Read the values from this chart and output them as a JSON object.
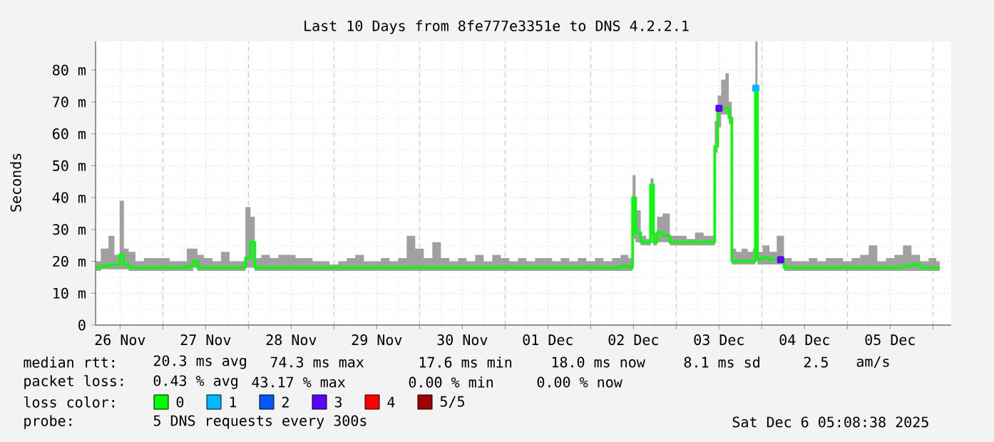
{
  "chart_data": {
    "type": "step",
    "title": "Last 10 Days from 8fe777e3351e to DNS 4.2.2.1",
    "ylabel": "Seconds",
    "legend_title": "loss color:",
    "legend": "bottom",
    "grid": true,
    "xlim": [
      "2025-11-26T05:08",
      "2025-12-06T05:08"
    ],
    "ylim": [
      0,
      89
    ],
    "xticks": [
      {
        "value": "2025-11-26T12:00",
        "label": "26 Nov"
      },
      {
        "value": "2025-11-27T12:00",
        "label": "27 Nov"
      },
      {
        "value": "2025-11-28T12:00",
        "label": "28 Nov"
      },
      {
        "value": "2025-11-29T12:00",
        "label": "29 Nov"
      },
      {
        "value": "2025-11-30T12:00",
        "label": "30 Nov"
      },
      {
        "value": "2025-12-01T12:00",
        "label": "01 Dec"
      },
      {
        "value": "2025-12-02T12:00",
        "label": "02 Dec"
      },
      {
        "value": "2025-12-03T12:00",
        "label": "03 Dec"
      },
      {
        "value": "2025-12-04T12:00",
        "label": "04 Dec"
      },
      {
        "value": "2025-12-05T12:00",
        "label": "05 Dec"
      },
      {
        "value": "2025-11-27",
        "label": null
      },
      {
        "value": "2025-11-28",
        "label": null
      },
      {
        "value": "2025-11-29",
        "label": null
      },
      {
        "value": "2025-11-30",
        "label": null
      },
      {
        "value": "2025-12-01",
        "label": null
      },
      {
        "value": "2025-12-02",
        "label": null
      },
      {
        "value": "2025-12-03",
        "label": null
      },
      {
        "value": "2025-12-04",
        "label": null
      },
      {
        "value": "2025-12-05",
        "label": null
      },
      {
        "value": "2025-12-06",
        "label": null
      }
    ],
    "yticks": [
      0,
      {
        "value": 10,
        "label": "10 m"
      },
      {
        "value": 20,
        "label": "20 m"
      },
      {
        "value": 30,
        "label": "30 m"
      },
      {
        "value": 40,
        "label": "40 m"
      },
      {
        "value": 50,
        "label": "50 m"
      },
      {
        "value": 60,
        "label": "60 m"
      },
      {
        "value": 70,
        "label": "70 m"
      },
      {
        "value": 80,
        "label": "80 m"
      }
    ],
    "x": [
      "2025-11-26T05:17",
      "2025-11-26T07:55",
      "2025-11-26T09:36",
      "2025-11-26T11:17",
      "2025-11-26T12:29",
      "2025-11-26T13:41",
      "2025-11-26T15:07",
      "2025-11-26T17:31",
      "2025-11-26T19:55",
      "2025-11-26T22:19",
      "2025-11-27T00:43",
      "2025-11-27T03:07",
      "2025-11-27T05:31",
      "2025-11-27T07:55",
      "2025-11-27T09:07",
      "2025-11-27T10:19",
      "2025-11-27T12:43",
      "2025-11-27T15:07",
      "2025-11-27T17:31",
      "2025-11-27T19:55",
      "2025-11-27T22:19",
      "2025-11-28T00:00",
      "2025-11-28T01:12",
      "2025-11-28T02:24",
      "2025-11-28T04:48",
      "2025-11-28T07:12",
      "2025-11-28T09:36",
      "2025-11-28T12:00",
      "2025-11-28T14:24",
      "2025-11-28T16:48",
      "2025-11-28T19:12",
      "2025-11-28T21:36",
      "2025-11-29T00:00",
      "2025-11-29T02:24",
      "2025-11-29T04:48",
      "2025-11-29T07:12",
      "2025-11-29T09:36",
      "2025-11-29T12:00",
      "2025-11-29T14:24",
      "2025-11-29T16:48",
      "2025-11-29T19:12",
      "2025-11-29T21:36",
      "2025-11-30T00:00",
      "2025-11-30T02:24",
      "2025-11-30T04:48",
      "2025-11-30T07:12",
      "2025-11-30T09:36",
      "2025-11-30T12:00",
      "2025-11-30T14:24",
      "2025-11-30T16:48",
      "2025-11-30T19:12",
      "2025-11-30T21:36",
      "2025-12-01T00:00",
      "2025-12-01T02:24",
      "2025-12-01T04:48",
      "2025-12-01T07:12",
      "2025-12-01T09:36",
      "2025-12-01T12:00",
      "2025-12-01T14:24",
      "2025-12-01T16:48",
      "2025-12-01T19:12",
      "2025-12-01T21:36",
      "2025-12-02T00:00",
      "2025-12-02T02:24",
      "2025-12-02T04:48",
      "2025-12-02T07:12",
      "2025-12-02T09:36",
      "2025-12-02T11:31",
      "2025-12-02T12:00",
      "2025-12-02T13:12",
      "2025-12-02T14:53",
      "2025-12-02T16:19",
      "2025-12-02T17:17",
      "2025-12-02T18:00",
      "2025-12-02T19:12",
      "2025-12-02T21:07",
      "2025-12-02T23:17",
      "2025-12-03T01:41",
      "2025-12-03T04:05",
      "2025-12-03T06:29",
      "2025-12-03T08:53",
      "2025-12-03T10:19",
      "2025-12-03T11:17",
      "2025-12-03T12:00",
      "2025-12-03T13:12",
      "2025-12-03T14:24",
      "2025-12-03T15:07",
      "2025-12-03T16:05",
      "2025-12-03T17:31",
      "2025-12-03T19:12",
      "2025-12-03T20:53",
      "2025-12-03T22:05",
      "2025-12-03T22:19",
      "2025-12-03T23:17",
      "2025-12-04T01:12",
      "2025-12-04T03:07",
      "2025-12-04T05:17",
      "2025-12-04T07:12",
      "2025-12-04T09:36",
      "2025-12-04T12:00",
      "2025-12-04T14:24",
      "2025-12-04T16:48",
      "2025-12-04T19:12",
      "2025-12-04T21:36",
      "2025-12-05T00:00",
      "2025-12-05T02:24",
      "2025-12-05T04:48",
      "2025-12-05T07:12",
      "2025-12-05T09:36",
      "2025-12-05T12:00",
      "2025-12-05T14:24",
      "2025-12-05T16:48",
      "2025-12-05T19:12",
      "2025-12-05T21:36",
      "2025-12-06T00:00",
      "2025-12-06T01:55"
    ],
    "series": [
      {
        "name": "0",
        "color": "#00ff00",
        "values": [
          18,
          18.5,
          19,
          19,
          22,
          19,
          18,
          18,
          18,
          18,
          18,
          18,
          18,
          18.5,
          20,
          18,
          18,
          18,
          18,
          18,
          18,
          21,
          26,
          18,
          18,
          18,
          18,
          18,
          18,
          18,
          18,
          18,
          18,
          18,
          18,
          18,
          18,
          18,
          18,
          18,
          18,
          18,
          18,
          18,
          18,
          18,
          18,
          18,
          18,
          18,
          18,
          18,
          18,
          18,
          18,
          18,
          18,
          18,
          18,
          18,
          18,
          18,
          18,
          18,
          18,
          18,
          18.5,
          18,
          40,
          29,
          26,
          26,
          44,
          26,
          29,
          28,
          26,
          26,
          26,
          26,
          26,
          26,
          56,
          68,
          68,
          68,
          65,
          20,
          20,
          20,
          20,
          20,
          74.3,
          20.5,
          21,
          20.5,
          20.5,
          18,
          18,
          18,
          18,
          18,
          18,
          18,
          18,
          18,
          18,
          18,
          18,
          18,
          18,
          18.5,
          19,
          18,
          18,
          18
        ],
        "lower": [
          17,
          17.5,
          17.5,
          17.5,
          17.5,
          17.5,
          17,
          17,
          17,
          17,
          17,
          17,
          17,
          17,
          18,
          17,
          17,
          17,
          17,
          17,
          17,
          18,
          18,
          17,
          17,
          17,
          17,
          17,
          17,
          17,
          17,
          17,
          17,
          17,
          17,
          17,
          17,
          17,
          17,
          17,
          17,
          17,
          17,
          17,
          17,
          17,
          17,
          17,
          17,
          17,
          17,
          17,
          17,
          17,
          17,
          17,
          17,
          17,
          17,
          17,
          17,
          17,
          17,
          17,
          17,
          17,
          17,
          17,
          27,
          26,
          25,
          25,
          28,
          25,
          26,
          26,
          25,
          25,
          25,
          25,
          25,
          25,
          54,
          62,
          66,
          66,
          63,
          19,
          19,
          19,
          19,
          19,
          40,
          19,
          19,
          19,
          19,
          17,
          17,
          17,
          17,
          17,
          17,
          17,
          17,
          17,
          17,
          17,
          17,
          17,
          17,
          17,
          17,
          17,
          17,
          17
        ],
        "upper": [
          20,
          24,
          28,
          22,
          39,
          24,
          23,
          20,
          21,
          21,
          21,
          20,
          20,
          24,
          24,
          22,
          21,
          20,
          23,
          20,
          20,
          37,
          34,
          21,
          22,
          21,
          22,
          22,
          21,
          21,
          20,
          20,
          19,
          20,
          21,
          22,
          20,
          20,
          21,
          20,
          21,
          28,
          24,
          21,
          26,
          21,
          20,
          21,
          20,
          22,
          20,
          22,
          21,
          20,
          21,
          20,
          21,
          21,
          20,
          21,
          20,
          21,
          20,
          21,
          20,
          21,
          22,
          21,
          47,
          36,
          28,
          27,
          46,
          29,
          34,
          35,
          28,
          28,
          27,
          29,
          28,
          28,
          64,
          72,
          77,
          79,
          70,
          24,
          23,
          24,
          23,
          24,
          89,
          23,
          25,
          23,
          28,
          21,
          20,
          20,
          21,
          20,
          21,
          21,
          20,
          21,
          22,
          25,
          20,
          21,
          22,
          25,
          22,
          20,
          21,
          20
        ]
      },
      {
        "name": "1",
        "color": "#00b8ff",
        "type": "scatter",
        "marker": "square",
        "x": [
          "2025-12-03T22:19"
        ],
        "values": [
          74.3
        ]
      },
      {
        "name": "2",
        "color": "#0059ff",
        "type": "scatter",
        "marker": "square",
        "values": [
          null,
          null,
          null,
          null,
          null,
          null,
          null,
          null,
          null,
          null,
          null,
          null,
          null,
          null,
          null,
          null,
          null,
          null,
          null,
          null,
          null,
          null,
          null,
          null,
          null,
          null,
          null,
          null,
          null,
          null,
          null,
          null,
          null,
          null,
          null,
          null,
          null,
          null,
          null,
          null,
          null,
          null,
          null,
          null,
          null,
          null,
          null,
          null,
          null,
          null,
          null,
          null,
          null,
          null,
          null,
          null,
          null,
          null,
          null,
          null,
          null,
          null,
          null,
          null,
          null,
          null,
          null,
          null,
          null,
          null,
          null,
          null,
          null,
          null,
          null,
          null,
          null,
          null,
          null,
          null,
          null,
          null,
          null,
          null,
          null,
          null,
          null,
          null,
          null,
          null,
          null,
          null,
          null,
          null,
          null,
          null,
          null,
          null,
          null,
          null,
          null,
          null,
          null,
          null,
          null,
          null,
          null,
          null,
          null,
          null,
          null,
          null,
          null,
          null,
          null,
          null
        ]
      },
      {
        "name": "3",
        "color": "#5e00ff",
        "type": "scatter",
        "marker": "square",
        "x": [
          "2025-12-03T12:00",
          "2025-12-04T05:17"
        ],
        "values": [
          68,
          20.5
        ]
      },
      {
        "name": "4",
        "color": "#ff0000",
        "type": "scatter",
        "marker": "square",
        "values": [
          null,
          null,
          null,
          null,
          null,
          null,
          null,
          null,
          null,
          null,
          null,
          null,
          null,
          null,
          null,
          null,
          null,
          null,
          null,
          null,
          null,
          null,
          null,
          null,
          null,
          null,
          null,
          null,
          null,
          null,
          null,
          null,
          null,
          null,
          null,
          null,
          null,
          null,
          null,
          null,
          null,
          null,
          null,
          null,
          null,
          null,
          null,
          null,
          null,
          null,
          null,
          null,
          null,
          null,
          null,
          null,
          null,
          null,
          null,
          null,
          null,
          null,
          null,
          null,
          null,
          null,
          null,
          null,
          null,
          null,
          null,
          null,
          null,
          null,
          null,
          null,
          null,
          null,
          null,
          null,
          null,
          null,
          null,
          null,
          null,
          null,
          null,
          null,
          null,
          null,
          null,
          null,
          null,
          null,
          null,
          null,
          null,
          null,
          null,
          null,
          null,
          null,
          null,
          null,
          null,
          null,
          null,
          null,
          null,
          null,
          null,
          null,
          null,
          null,
          null,
          null
        ]
      },
      {
        "name": "5/5",
        "color": "#a10000",
        "type": "scatter",
        "marker": "square",
        "values": [
          null,
          null,
          null,
          null,
          null,
          null,
          null,
          null,
          null,
          null,
          null,
          null,
          null,
          null,
          null,
          null,
          null,
          null,
          null,
          null,
          null,
          null,
          null,
          null,
          null,
          null,
          null,
          null,
          null,
          null,
          null,
          null,
          null,
          null,
          null,
          null,
          null,
          null,
          null,
          null,
          null,
          null,
          null,
          null,
          null,
          null,
          null,
          null,
          null,
          null,
          null,
          null,
          null,
          null,
          null,
          null,
          null,
          null,
          null,
          null,
          null,
          null,
          null,
          null,
          null,
          null,
          null,
          null,
          null,
          null,
          null,
          null,
          null,
          null,
          null,
          null,
          null,
          null,
          null,
          null,
          null,
          null,
          null,
          null,
          null,
          null,
          null,
          null,
          null,
          null,
          null,
          null,
          null,
          null,
          null,
          null,
          null,
          null,
          null,
          null,
          null,
          null,
          null,
          null,
          null,
          null,
          null,
          null,
          null,
          null,
          null,
          null,
          null,
          null,
          null,
          null
        ]
      }
    ],
    "annotations": [
      "median rtt:",
      "20.3 ms avg",
      "74.3 ms max",
      "17.6 ms min",
      "18.0 ms now",
      "8.1 ms sd",
      "2.5",
      "am/s",
      "packet loss:",
      "0.43 % avg",
      "43.17 % max",
      "0.00 % min",
      "0.00 % now",
      "probe:",
      "5 DNS requests every 300s",
      "Sat Dec  6 05:08:38 2025"
    ]
  }
}
